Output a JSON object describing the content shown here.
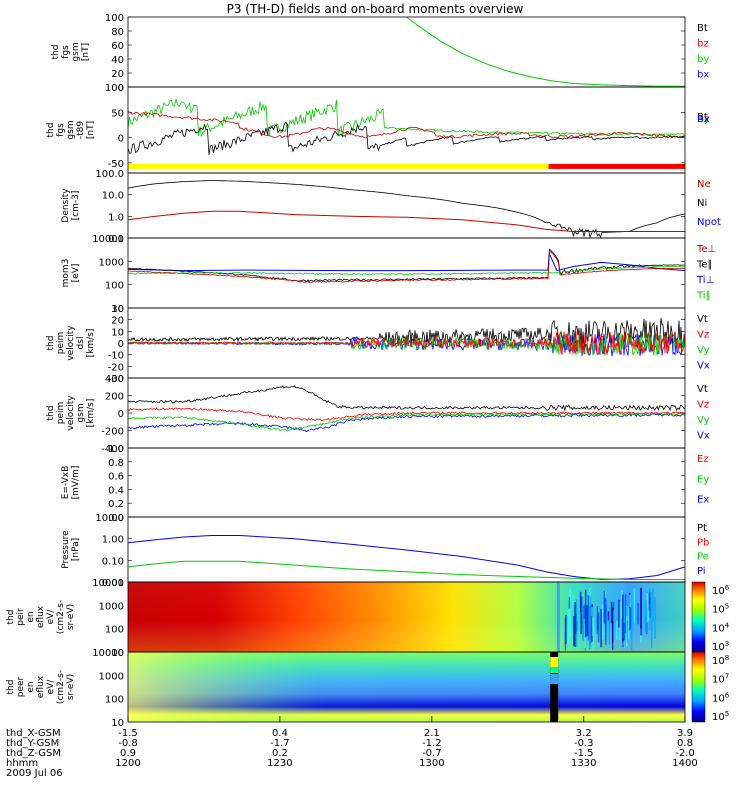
{
  "title": "P3 (TH-D) fields and on-board moments overview",
  "date": "2009 Jul 06",
  "chart_data": [
    {
      "id": "bfield",
      "type": "line",
      "ylabel": [
        "thd",
        "fgs",
        "gsm",
        "[nT]"
      ],
      "ylim": [
        0,
        100
      ],
      "yticks": [
        "100",
        "80",
        "60",
        "40",
        "20",
        "0"
      ],
      "series": [
        {
          "name": "Bt",
          "color": "#000000"
        },
        {
          "name": "bz",
          "color": "#ff0000"
        },
        {
          "name": "by",
          "color": "#00cc00"
        },
        {
          "name": "bx",
          "color": "#0000ff"
        }
      ],
      "curve": {
        "x": [
          0.5,
          0.52,
          0.56,
          0.6,
          0.64,
          0.68,
          0.72,
          0.76,
          0.8,
          0.85,
          0.9,
          0.95,
          1.0
        ],
        "y": [
          100,
          88,
          66,
          48,
          34,
          23,
          15,
          9,
          5,
          3,
          2,
          1,
          1
        ]
      }
    },
    {
      "id": "bdet",
      "type": "line",
      "ylabel": [
        "thd",
        "fgs",
        "gsm",
        "-t89",
        "[nT]"
      ],
      "ylim": [
        -70,
        100
      ],
      "yticks": [
        "100",
        "50",
        "0",
        "-50"
      ],
      "series": [
        {
          "name": "Bt",
          "color": "#000000"
        },
        {
          "name": "Bz",
          "color": "#ff0000"
        },
        {
          "name": "By",
          "color": "#00cc00"
        },
        {
          "name": "Bx",
          "color": "#0000ff"
        }
      ],
      "legend_overlap": "Bz"
    },
    {
      "id": "density",
      "type": "line",
      "ylabel": [
        "Density",
        "[cm-3]"
      ],
      "yscale": "log",
      "ylim": [
        0.1,
        100
      ],
      "yticks": [
        "100.0",
        "10.0",
        "1.0",
        "0.1"
      ],
      "series": [
        {
          "name": "Ne",
          "color": "#cc0000"
        },
        {
          "name": "Ni",
          "color": "#000000"
        },
        {
          "name": "Npot",
          "color": "#0000ff"
        }
      ]
    },
    {
      "id": "temp",
      "type": "line",
      "ylabel": [
        "mom3",
        "[eV]"
      ],
      "yscale": "log",
      "ylim": [
        10,
        10000
      ],
      "yticks": [
        "10000",
        "1000",
        "100",
        "10"
      ],
      "series": [
        {
          "name": "Te⊥",
          "color": "#cc0000"
        },
        {
          "name": "Te∥",
          "color": "#000000"
        },
        {
          "name": "Ti⊥",
          "color": "#0000ff"
        },
        {
          "name": "Ti∥",
          "color": "#00cc00"
        }
      ]
    },
    {
      "id": "vel1",
      "type": "line",
      "ylabel": [
        "thd",
        "peim",
        "velocity",
        "dsl",
        "[km/s]"
      ],
      "ylim": [
        -30,
        30
      ],
      "yticks": [
        "30",
        "20",
        "10",
        "0",
        "-10",
        "-20",
        "-30"
      ],
      "series": [
        {
          "name": "Vt",
          "color": "#000000"
        },
        {
          "name": "Vz",
          "color": "#ff0000"
        },
        {
          "name": "Vy",
          "color": "#00cc00"
        },
        {
          "name": "Vx",
          "color": "#0000ff"
        }
      ]
    },
    {
      "id": "vel2",
      "type": "line",
      "ylabel": [
        "thd",
        "peim",
        "velocity",
        "gsm",
        "[km/s]"
      ],
      "ylim": [
        -400,
        400
      ],
      "yticks": [
        "400",
        "200",
        "0",
        "-200",
        "-400"
      ],
      "series": [
        {
          "name": "Vt",
          "color": "#000000"
        },
        {
          "name": "Vz",
          "color": "#ff0000"
        },
        {
          "name": "Vy",
          "color": "#00cc00"
        },
        {
          "name": "Vx",
          "color": "#0000ff"
        }
      ]
    },
    {
      "id": "efield",
      "type": "line",
      "ylabel": [
        "E=-VxB",
        "[mV/m]"
      ],
      "ylim": [
        0,
        1
      ],
      "yticks": [
        "1.0",
        "0.8",
        "0.6",
        "0.4",
        "0.2",
        "0.0"
      ],
      "series": [
        {
          "name": "Ez",
          "color": "#ff0000"
        },
        {
          "name": "Ey",
          "color": "#00cc00"
        },
        {
          "name": "Ex",
          "color": "#0000ff"
        }
      ]
    },
    {
      "id": "pressure",
      "type": "line",
      "ylabel": [
        "Pressure",
        "[nPa]"
      ],
      "yscale": "log",
      "ylim": [
        0.01,
        10
      ],
      "yticks": [
        "10.00",
        "1.00",
        "0.10",
        "0.01"
      ],
      "series": [
        {
          "name": "Pt",
          "color": "#000000"
        },
        {
          "name": "Pb",
          "color": "#ff0000"
        },
        {
          "name": "Pe",
          "color": "#00cc00"
        },
        {
          "name": "Pi",
          "color": "#0000ff"
        }
      ],
      "pi": {
        "x": [
          0,
          0.05,
          0.1,
          0.15,
          0.2,
          0.3,
          0.4,
          0.5,
          0.6,
          0.7,
          0.75,
          0.8,
          0.85,
          0.9,
          0.95,
          1.0
        ],
        "y": [
          0.65,
          0.9,
          1.2,
          1.4,
          1.4,
          1.0,
          0.55,
          0.3,
          0.15,
          0.06,
          0.03,
          0.018,
          0.013,
          0.014,
          0.02,
          0.05
        ]
      },
      "pe": {
        "x": [
          0,
          0.05,
          0.1,
          0.2,
          0.3,
          0.4,
          0.5,
          0.6,
          0.7,
          0.8,
          0.9,
          1.0
        ],
        "y": [
          0.05,
          0.07,
          0.09,
          0.09,
          0.06,
          0.04,
          0.03,
          0.022,
          0.018,
          0.015,
          0.013,
          0.013
        ]
      }
    },
    {
      "id": "ion_spec",
      "type": "heatmap",
      "ylabel": [
        "thd",
        "peir",
        "en",
        "eflux",
        "eV/",
        "(cm2-s-",
        "sr-eV)"
      ],
      "yscale": "log",
      "ylim": [
        10,
        20000
      ],
      "yticks": [
        "10000",
        "1000",
        "100",
        "10"
      ],
      "colorbar": [
        "10^6",
        "10^5",
        "10^4",
        "10^3"
      ]
    },
    {
      "id": "el_spec",
      "type": "heatmap",
      "ylabel": [
        "thd",
        "peer",
        "en",
        "eflux",
        "eV/",
        "(cm2-s-",
        "sr-eV)"
      ],
      "yscale": "log",
      "ylim": [
        7,
        20000
      ],
      "yticks": [
        "10000",
        "1000",
        "100",
        "10"
      ],
      "colorbar": [
        "10^8",
        "10^7",
        "10^6",
        "10^5"
      ]
    }
  ],
  "xaxis": {
    "tick_fractions": [
      0,
      0.2727,
      0.5455,
      0.8182,
      1.0
    ],
    "rows": [
      {
        "label": "thd_X-GSM",
        "values": [
          "-1.5",
          "0.4",
          "2.1",
          "3.2",
          "3.9"
        ]
      },
      {
        "label": "thd_Y-GSM",
        "values": [
          "-0.8",
          "-1.7",
          "-1.2",
          "-0.3",
          "0.8"
        ]
      },
      {
        "label": "thd_Z-GSM",
        "values": [
          "0.9",
          "0.2",
          "-0.7",
          "-1.5",
          "-2.0"
        ]
      },
      {
        "label": "hhmm",
        "values": [
          "1200",
          "1230",
          "1300",
          "1330",
          "1400"
        ]
      }
    ]
  }
}
